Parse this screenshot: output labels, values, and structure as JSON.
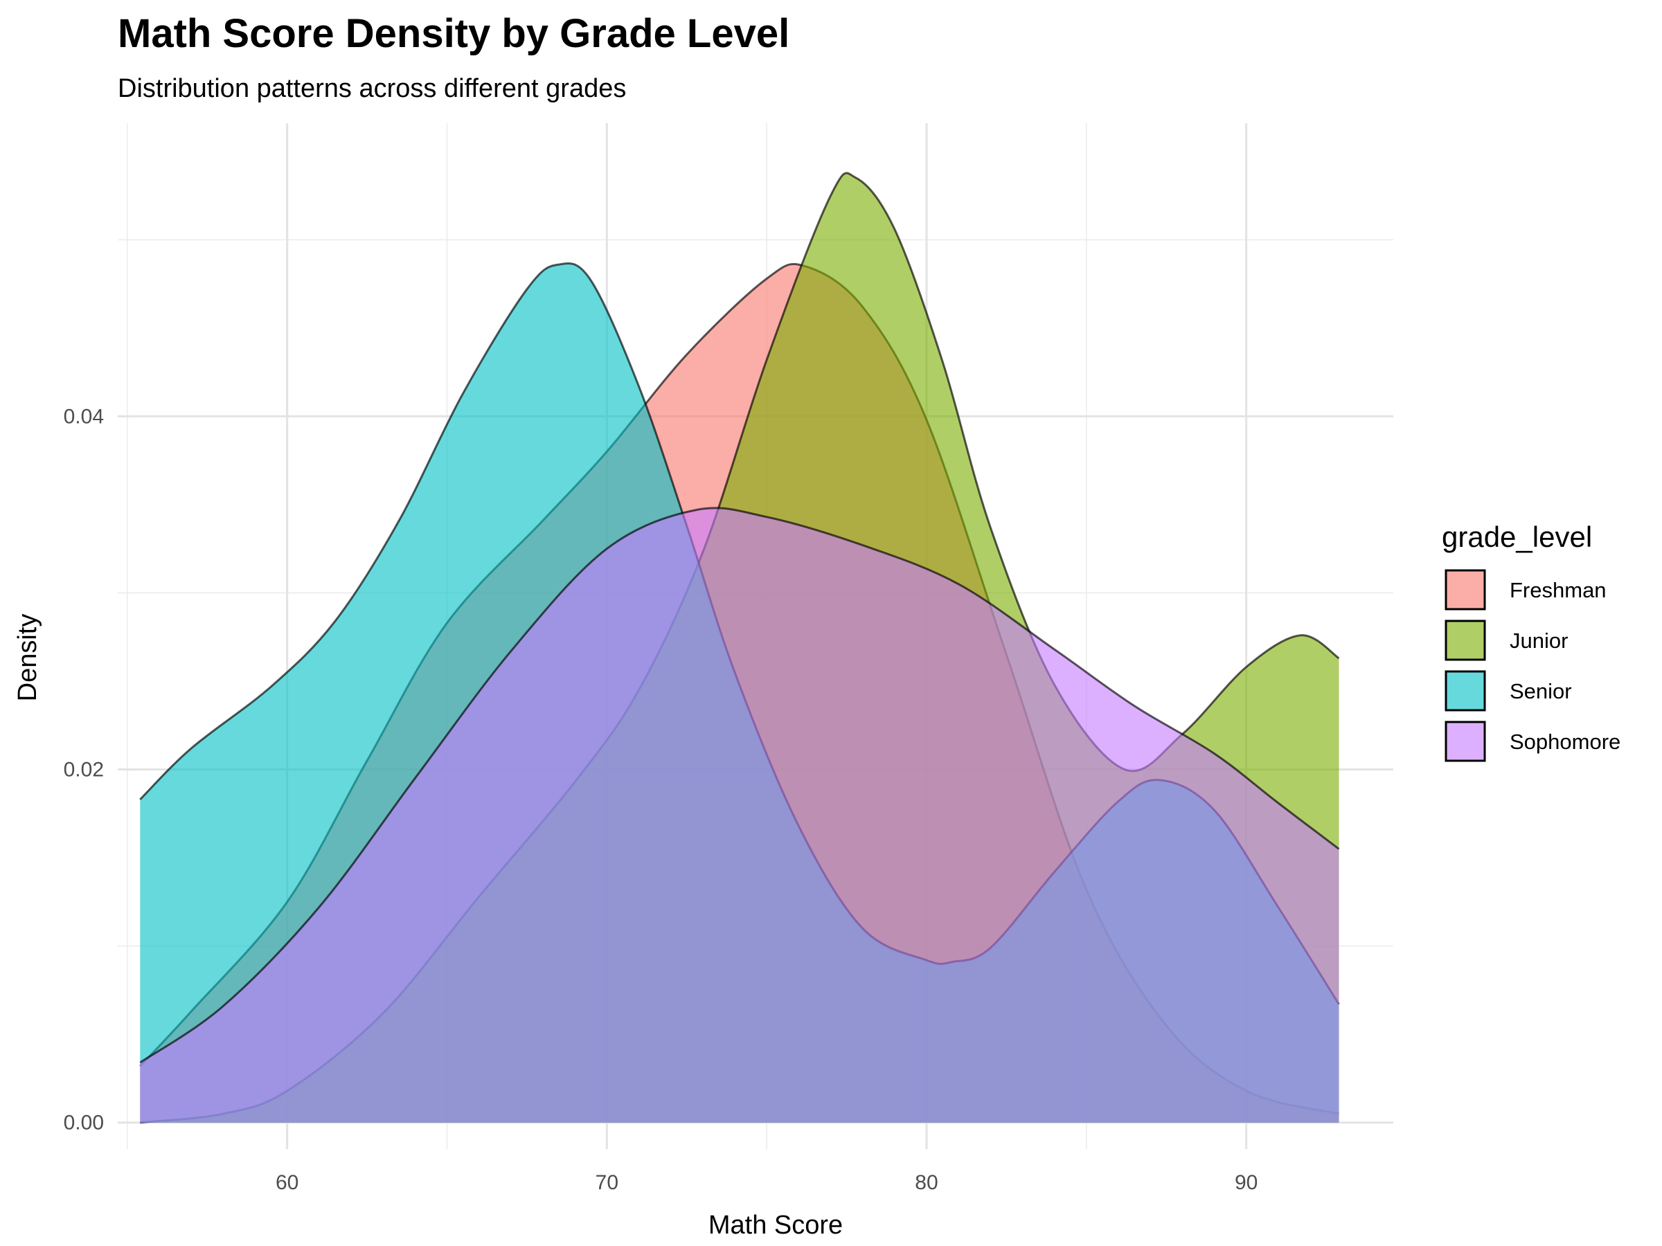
{
  "chart_data": {
    "type": "area",
    "title": "Math Score Density by Grade Level",
    "subtitle": "Distribution patterns across different grades",
    "xlabel": "Math Score",
    "ylabel": "Density",
    "xlim": [
      54.7,
      94.6
    ],
    "ylim": [
      -0.0015,
      0.0566
    ],
    "x_ticks": [
      60,
      70,
      80,
      90
    ],
    "y_ticks": [
      0.0,
      0.02,
      0.04
    ],
    "y_tick_labels": [
      "0.00",
      "0.02",
      "0.04"
    ],
    "x_minor_gridlines": [
      55,
      65,
      75,
      85,
      95
    ],
    "y_minor_gridlines": [
      0.01,
      0.03,
      0.05
    ],
    "grid": true,
    "fill_opacity": 0.6,
    "legend": {
      "title": "grade_level",
      "position": "right"
    },
    "series": [
      {
        "name": "Freshman",
        "color": "#F8766D",
        "x": [
          55.4,
          57,
          60,
          62.5,
          65,
          68,
          70,
          72.5,
          75,
          76.2,
          78,
          80,
          82.5,
          85,
          87.5,
          90,
          92.9
        ],
        "y": [
          0.0032,
          0.0063,
          0.0125,
          0.0205,
          0.0283,
          0.0341,
          0.038,
          0.0435,
          0.0478,
          0.0485,
          0.0462,
          0.0398,
          0.0265,
          0.0132,
          0.0055,
          0.0018,
          0.0005
        ]
      },
      {
        "name": "Junior",
        "color": "#7CAE00",
        "x": [
          55.4,
          58,
          60,
          63,
          66,
          69,
          71,
          73,
          75,
          77,
          77.8,
          79,
          80.5,
          82,
          84,
          86.2,
          88,
          90,
          91.7,
          92.9
        ],
        "y": [
          0.0,
          0.0005,
          0.0018,
          0.0062,
          0.0128,
          0.0193,
          0.0245,
          0.0323,
          0.0432,
          0.0525,
          0.0535,
          0.0506,
          0.0431,
          0.0337,
          0.0248,
          0.02,
          0.022,
          0.0258,
          0.0276,
          0.0263
        ]
      },
      {
        "name": "Senior",
        "color": "#00BFC4",
        "x": [
          55.4,
          57,
          59.5,
          61.5,
          63.5,
          65.5,
          67.5,
          68.5,
          69.5,
          71,
          72.5,
          74,
          76,
          78,
          80,
          80.8,
          82,
          84,
          86,
          87.3,
          89,
          91,
          92.9
        ],
        "y": [
          0.0183,
          0.0212,
          0.0247,
          0.0284,
          0.0341,
          0.0413,
          0.0472,
          0.0486,
          0.0477,
          0.0417,
          0.0338,
          0.0255,
          0.0168,
          0.011,
          0.0092,
          0.0091,
          0.0099,
          0.0142,
          0.0182,
          0.0194,
          0.0177,
          0.0122,
          0.0067
        ]
      },
      {
        "name": "Sophomore",
        "color": "#C77CFF",
        "x": [
          55.4,
          58,
          61,
          64,
          67,
          70,
          72.8,
          75,
          78,
          81,
          84,
          86.5,
          89,
          91,
          92.9
        ],
        "y": [
          0.0034,
          0.0066,
          0.0122,
          0.0195,
          0.0267,
          0.0325,
          0.0347,
          0.0343,
          0.0327,
          0.0305,
          0.0268,
          0.0236,
          0.0209,
          0.0181,
          0.0155
        ]
      }
    ]
  }
}
